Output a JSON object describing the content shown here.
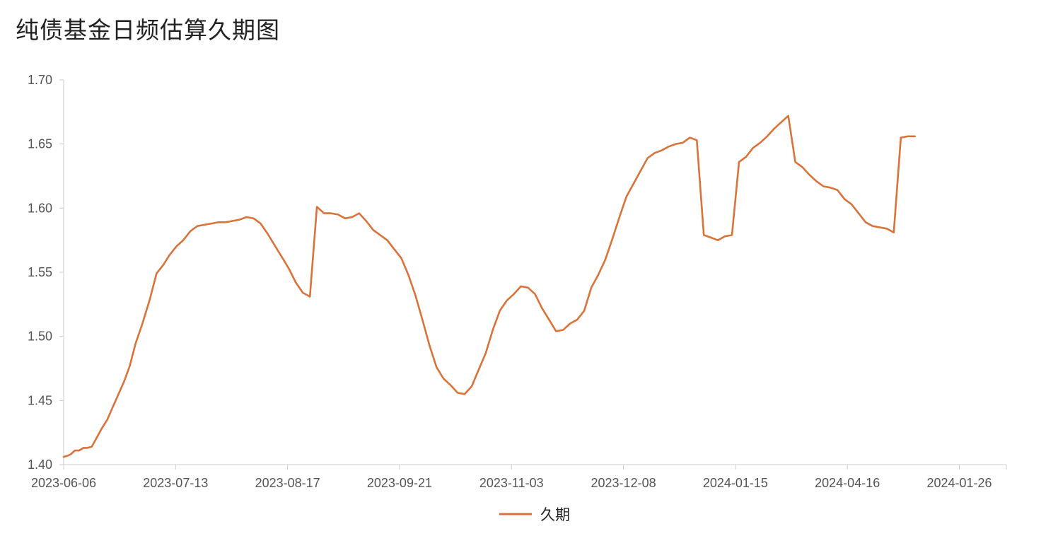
{
  "title": "纯债基金日频估算久期图",
  "chart_data": {
    "type": "line",
    "title": "纯债基金日频估算久期图",
    "xlabel": "",
    "ylabel": "",
    "ylim": [
      1.4,
      1.7
    ],
    "y_ticks": [
      "1.40",
      "1.45",
      "1.50",
      "1.55",
      "1.60",
      "1.65",
      "1.70"
    ],
    "x_ticks": [
      "2023-06-06",
      "2023-07-13",
      "2023-08-17",
      "2023-09-21",
      "2023-11-03",
      "2023-12-08",
      "2024-01-15",
      "2024-04-16",
      "2024-01-26"
    ],
    "grid": false,
    "legend_position": "bottom-center",
    "series": [
      {
        "name": "久期",
        "color": "#d9733a",
        "x_index": [
          0,
          3,
          5,
          8,
          11,
          14,
          17,
          20,
          23,
          27,
          31,
          35,
          39,
          43,
          47,
          51,
          56,
          61,
          66,
          71,
          75,
          80,
          85,
          90,
          95,
          100,
          105,
          110,
          115,
          120,
          125,
          130,
          135,
          140,
          145,
          150,
          155,
          160,
          165,
          170,
          175,
          180,
          185,
          190,
          195,
          200,
          205,
          210,
          215,
          220,
          225,
          230,
          235,
          240,
          245,
          250,
          255,
          260,
          265,
          270,
          275,
          280,
          285,
          290,
          295,
          300,
          305,
          310,
          315,
          320,
          325,
          330,
          335,
          340,
          345,
          350,
          355,
          360,
          365,
          370,
          375,
          380,
          385,
          390,
          395,
          400,
          405,
          410,
          415,
          420,
          425,
          430,
          435,
          440,
          445,
          450,
          455,
          460,
          465,
          470,
          475,
          480,
          485,
          490,
          495,
          500,
          505,
          510,
          515,
          520,
          525,
          530,
          535,
          540,
          545,
          550,
          555,
          560,
          565,
          570,
          575,
          580,
          585,
          590,
          595,
          600,
          605,
          610,
          615,
          620,
          625,
          630,
          635,
          640,
          645,
          650,
          655,
          660,
          665,
          670
        ],
        "values": [
          1.406,
          1.407,
          1.408,
          1.411,
          1.411,
          1.413,
          1.413,
          1.414,
          1.42,
          1.428,
          1.435,
          1.445,
          1.455,
          1.465,
          1.477,
          1.494,
          1.51,
          1.528,
          1.549,
          1.556,
          1.563,
          1.57,
          1.575,
          1.582,
          1.586,
          1.587,
          1.588,
          1.589,
          1.589,
          1.59,
          1.591,
          1.593,
          1.592,
          1.588,
          1.58,
          1.571,
          1.562,
          1.553,
          1.542,
          1.534,
          1.531,
          1.601,
          1.596,
          1.596,
          1.595,
          1.592,
          1.593,
          1.596,
          1.59,
          1.583,
          1.579,
          1.575,
          1.568,
          1.561,
          1.548,
          1.532,
          1.513,
          1.493,
          1.476,
          1.467,
          1.462,
          1.456,
          1.455,
          1.461,
          1.474,
          1.487,
          1.505,
          1.52,
          1.528,
          1.533,
          1.539,
          1.538,
          1.533,
          1.522,
          1.513,
          1.504,
          1.505,
          1.51,
          1.513,
          1.52,
          1.538,
          1.548,
          1.56,
          1.576,
          1.593,
          1.609,
          1.619,
          1.629,
          1.639,
          1.643,
          1.645,
          1.648,
          1.65,
          1.651,
          1.655,
          1.653,
          1.579,
          1.577,
          1.575,
          1.578,
          1.579,
          1.636,
          1.64,
          1.647,
          1.651,
          1.656,
          1.662,
          1.667,
          1.672,
          1.636,
          1.632,
          1.626,
          1.621,
          1.617,
          1.616,
          1.614,
          1.607,
          1.603,
          1.596,
          1.589,
          1.586,
          1.585,
          1.584,
          1.581,
          1.655,
          1.656,
          1.656,
          1.653,
          1.651,
          1.647,
          1.646,
          1.645,
          1.644,
          1.644,
          1.644,
          1.644,
          1.644,
          1.644,
          1.644,
          1.644
        ]
      }
    ],
    "x_count": 670
  }
}
